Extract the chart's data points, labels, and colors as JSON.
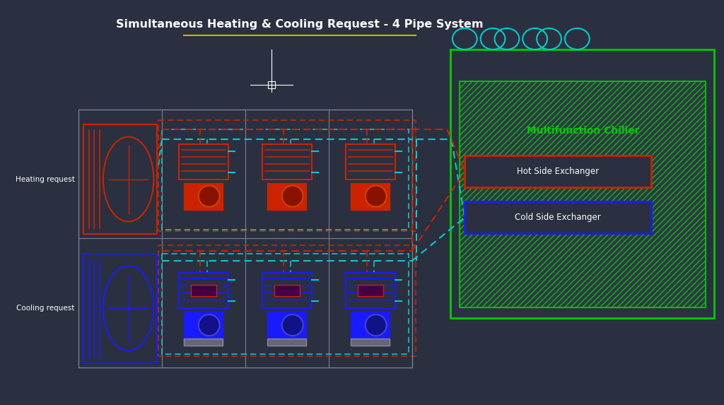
{
  "title": "Simultaneous Heating & Cooling Request - 4 Pipe System",
  "bg_color": "#2b3040",
  "title_color": "#ffffff",
  "title_underline_color": "#c8b400",
  "green_color": "#00cc00",
  "red_color": "#cc2200",
  "blue_color": "#1a1aff",
  "cyan_color": "#00cccc",
  "gray_color": "#7a8090",
  "white_color": "#ffffff",
  "chiller_label": "Multifunction Chiller",
  "hot_exchanger_label": "Hot Side Exchanger",
  "cold_exchanger_label": "Cold Side Exchanger",
  "heating_request_label": "Heating request",
  "cooling_request_label": "Cooling request"
}
